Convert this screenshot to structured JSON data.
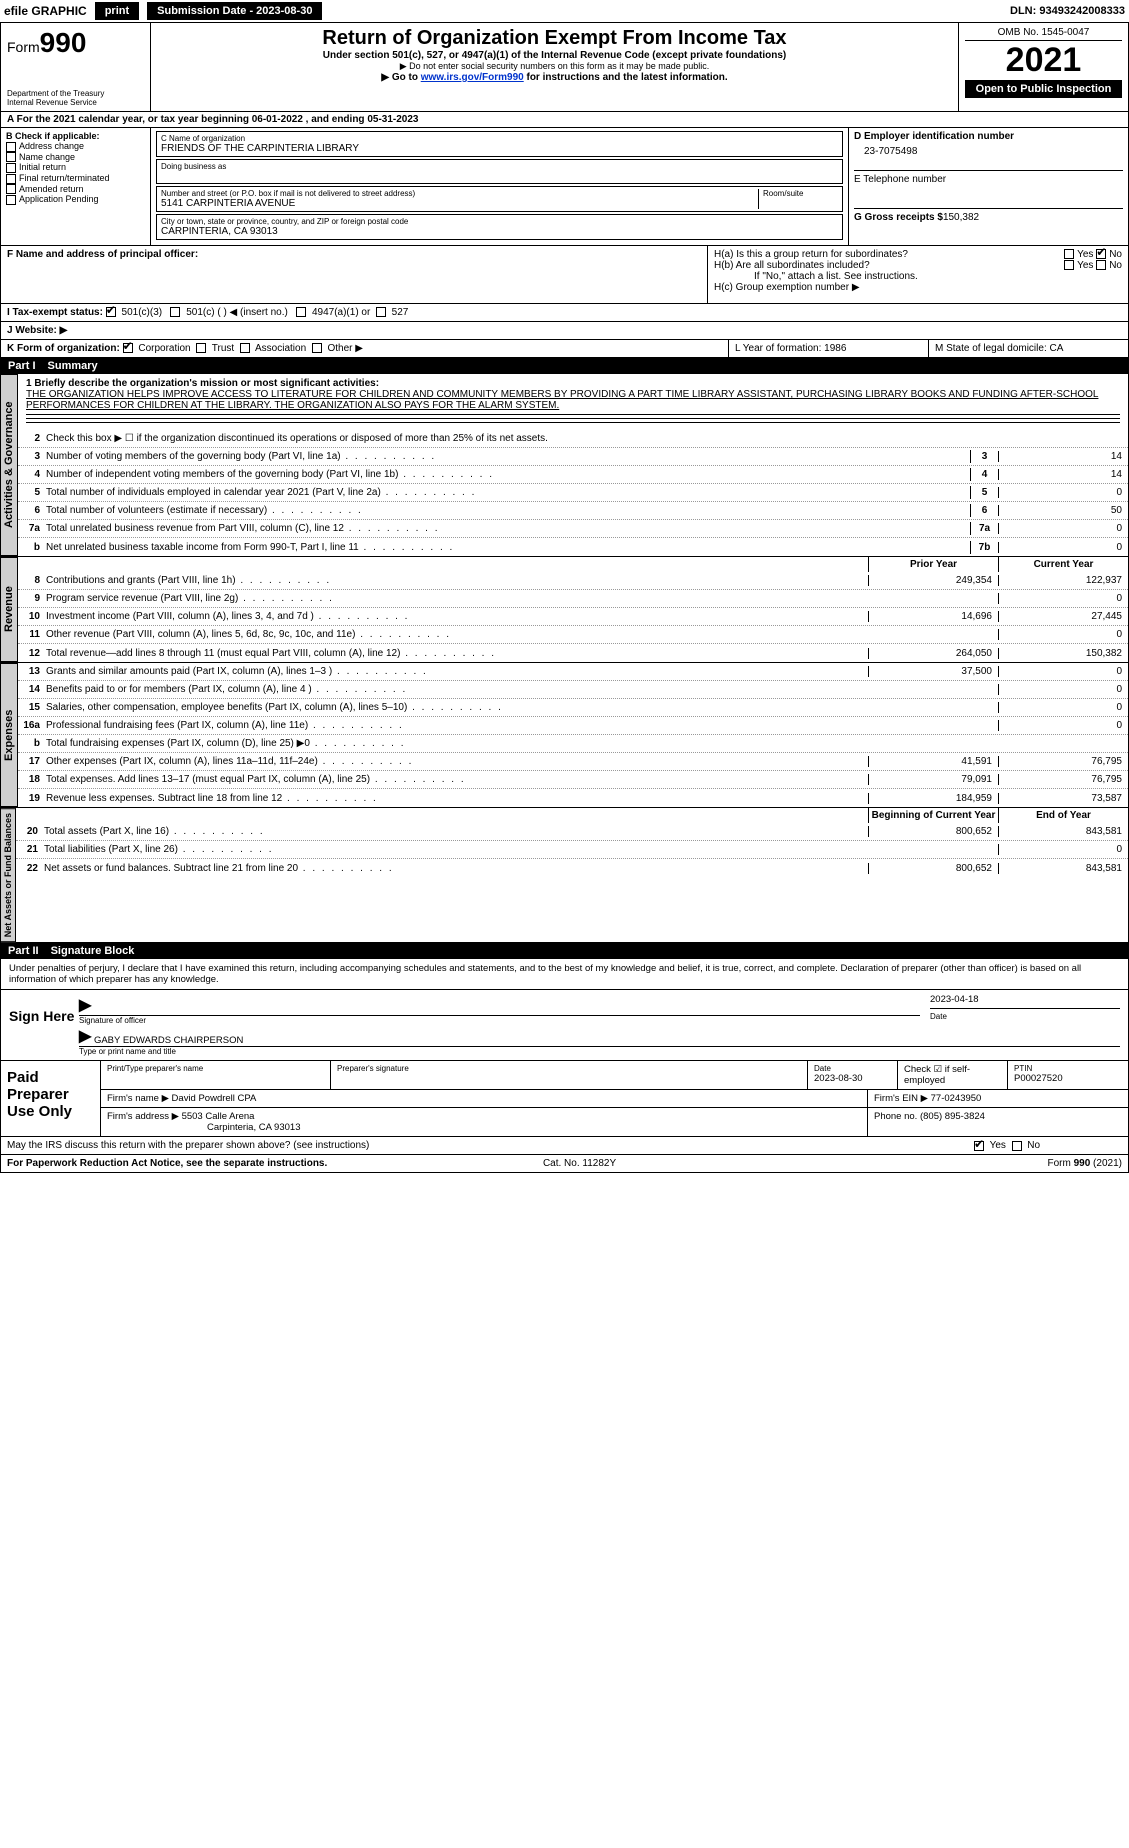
{
  "topbar": {
    "efile_prefix": "efile",
    "efile_suffix": "GRAPHIC",
    "print": "print",
    "submission": "Submission Date - 2023-08-30",
    "dln": "DLN: 93493242008333"
  },
  "header": {
    "form_label": "Form",
    "form_num": "990",
    "dept": "Department of the Treasury",
    "irs": "Internal Revenue Service",
    "title": "Return of Organization Exempt From Income Tax",
    "sub": "Under section 501(c), 527, or 4947(a)(1) of the Internal Revenue Code (except private foundations)",
    "note": "▶ Do not enter social security numbers on this form as it may be made public.",
    "link_pre": "▶ Go to ",
    "link": "www.irs.gov/Form990",
    "link_post": " for instructions and the latest information.",
    "omb": "OMB No. 1545-0047",
    "year": "2021",
    "open": "Open to Public Inspection"
  },
  "row_a": {
    "text": "A For the 2021 calendar year, or tax year beginning 06-01-2022    , and ending 05-31-2023"
  },
  "block_b": {
    "hdr": "B Check if applicable:",
    "addr": "Address change",
    "name": "Name change",
    "init": "Initial return",
    "final": "Final return/terminated",
    "amend": "Amended return",
    "app": "Application Pending",
    "c_lbl": "C Name of organization",
    "c_val": "FRIENDS OF THE CARPINTERIA LIBRARY",
    "dba_lbl": "Doing business as",
    "street_lbl": "Number and street (or P.O. box if mail is not delivered to street address)",
    "room_lbl": "Room/suite",
    "street_val": "5141 CARPINTERIA AVENUE",
    "city_lbl": "City or town, state or province, country, and ZIP or foreign postal code",
    "city_val": "CARPINTERIA, CA  93013",
    "d_lbl": "D Employer identification number",
    "d_val": "23-7075498",
    "e_lbl": "E Telephone number",
    "g_lbl": "G Gross receipts $",
    "g_val": "150,382"
  },
  "block_f": {
    "f_lbl": "F  Name and address of principal officer:",
    "ha": "H(a)  Is this a group return for subordinates?",
    "hb": "H(b)  Are all subordinates included?",
    "hb_note": "If \"No,\" attach a list. See instructions.",
    "hc": "H(c)  Group exemption number ▶",
    "yes": "Yes",
    "no": "No"
  },
  "tax_status": {
    "i": "I  Tax-exempt status:",
    "c3": "501(c)(3)",
    "c": "501(c) (  ) ◀ (insert no.)",
    "a1": "4947(a)(1) or",
    "s527": "527",
    "j": "J  Website: ▶"
  },
  "row_k": {
    "k": "K Form of organization:",
    "corp": "Corporation",
    "trust": "Trust",
    "assoc": "Association",
    "other": "Other ▶",
    "l": "L Year of formation: 1986",
    "m": "M State of legal domicile: CA"
  },
  "part1": {
    "pn": "Part I",
    "title": "Summary",
    "tab1": "Activities & Governance",
    "tab2": "Revenue",
    "tab3": "Expenses",
    "tab4": "Net Assets or Fund Balances",
    "l1": "1  Briefly describe the organization's mission or most significant activities:",
    "mission": "THE ORGANIZATION HELPS IMPROVE ACCESS TO LITERATURE FOR CHILDREN AND COMMUNITY MEMBERS BY PROVIDING A PART TIME LIBRARY ASSISTANT, PURCHASING LIBRARY BOOKS AND FUNDING AFTER-SCHOOL PERFORMANCES FOR CHILDREN AT THE LIBRARY. THE ORGANIZATION ALSO PAYS FOR THE ALARM SYSTEM.",
    "l2": "Check this box ▶ ☐  if the organization discontinued its operations or disposed of more than 25% of its net assets.",
    "rows_single": [
      {
        "n": "3",
        "t": "Number of voting members of the governing body (Part VI, line 1a)",
        "b": "3",
        "v": "14"
      },
      {
        "n": "4",
        "t": "Number of independent voting members of the governing body (Part VI, line 1b)",
        "b": "4",
        "v": "14"
      },
      {
        "n": "5",
        "t": "Total number of individuals employed in calendar year 2021 (Part V, line 2a)",
        "b": "5",
        "v": "0"
      },
      {
        "n": "6",
        "t": "Total number of volunteers (estimate if necessary)",
        "b": "6",
        "v": "50"
      },
      {
        "n": "7a",
        "t": "Total unrelated business revenue from Part VIII, column (C), line 12",
        "b": "7a",
        "v": "0"
      },
      {
        "n": "b",
        "t": "Net unrelated business taxable income from Form 990-T, Part I, line 11",
        "b": "7b",
        "v": "0"
      }
    ],
    "prior": "Prior Year",
    "current": "Current Year",
    "rows_rev": [
      {
        "n": "8",
        "t": "Contributions and grants (Part VIII, line 1h)",
        "p": "249,354",
        "c": "122,937"
      },
      {
        "n": "9",
        "t": "Program service revenue (Part VIII, line 2g)",
        "p": "",
        "c": "0"
      },
      {
        "n": "10",
        "t": "Investment income (Part VIII, column (A), lines 3, 4, and 7d )",
        "p": "14,696",
        "c": "27,445"
      },
      {
        "n": "11",
        "t": "Other revenue (Part VIII, column (A), lines 5, 6d, 8c, 9c, 10c, and 11e)",
        "p": "",
        "c": "0"
      },
      {
        "n": "12",
        "t": "Total revenue—add lines 8 through 11 (must equal Part VIII, column (A), line 12)",
        "p": "264,050",
        "c": "150,382"
      }
    ],
    "rows_exp": [
      {
        "n": "13",
        "t": "Grants and similar amounts paid (Part IX, column (A), lines 1–3 )",
        "p": "37,500",
        "c": "0"
      },
      {
        "n": "14",
        "t": "Benefits paid to or for members (Part IX, column (A), line 4 )",
        "p": "",
        "c": "0"
      },
      {
        "n": "15",
        "t": "Salaries, other compensation, employee benefits (Part IX, column (A), lines 5–10)",
        "p": "",
        "c": "0"
      },
      {
        "n": "16a",
        "t": "Professional fundraising fees (Part IX, column (A), line 11e)",
        "p": "",
        "c": "0"
      },
      {
        "n": "b",
        "t": "Total fundraising expenses (Part IX, column (D), line 25) ▶0",
        "p": "",
        "c": "",
        "grey": true
      },
      {
        "n": "17",
        "t": "Other expenses (Part IX, column (A), lines 11a–11d, 11f–24e)",
        "p": "41,591",
        "c": "76,795"
      },
      {
        "n": "18",
        "t": "Total expenses. Add lines 13–17 (must equal Part IX, column (A), line 25)",
        "p": "79,091",
        "c": "76,795"
      },
      {
        "n": "19",
        "t": "Revenue less expenses. Subtract line 18 from line 12",
        "p": "184,959",
        "c": "73,587"
      }
    ],
    "boy": "Beginning of Current Year",
    "eoy": "End of Year",
    "rows_net": [
      {
        "n": "20",
        "t": "Total assets (Part X, line 16)",
        "p": "800,652",
        "c": "843,581"
      },
      {
        "n": "21",
        "t": "Total liabilities (Part X, line 26)",
        "p": "",
        "c": "0"
      },
      {
        "n": "22",
        "t": "Net assets or fund balances. Subtract line 21 from line 20",
        "p": "800,652",
        "c": "843,581"
      }
    ]
  },
  "part2": {
    "pn": "Part II",
    "title": "Signature Block",
    "decl": "Under penalties of perjury, I declare that I have examined this return, including accompanying schedules and statements, and to the best of my knowledge and belief, it is true, correct, and complete. Declaration of preparer (other than officer) is based on all information of which preparer has any knowledge.",
    "sign": "Sign Here",
    "sig_officer": "Signature of officer",
    "date": "Date",
    "date_val": "2023-04-18",
    "name": "GABY EDWARDS  CHAIRPERSON",
    "name_lbl": "Type or print name and title",
    "paid": "Paid Preparer Use Only",
    "p_name_lbl": "Print/Type preparer's name",
    "p_sig_lbl": "Preparer's signature",
    "p_date_lbl": "Date",
    "p_date": "2023-08-30",
    "p_check": "Check ☑ if self-employed",
    "ptin_lbl": "PTIN",
    "ptin": "P00027520",
    "firm_name_lbl": "Firm's name    ▶",
    "firm_name": "David Powdrell CPA",
    "firm_ein_lbl": "Firm's EIN ▶",
    "firm_ein": "77-0243950",
    "firm_addr_lbl": "Firm's address ▶",
    "firm_addr1": "5503 Calle Arena",
    "firm_addr2": "Carpinteria, CA  93013",
    "phone_lbl": "Phone no.",
    "phone": "(805) 895-3824",
    "may": "May the IRS discuss this return with the preparer shown above? (see instructions)",
    "yes": "Yes",
    "no": "No"
  },
  "footer": {
    "l": "For Paperwork Reduction Act Notice, see the separate instructions.",
    "c": "Cat. No. 11282Y",
    "r": "Form 990 (2021)"
  }
}
